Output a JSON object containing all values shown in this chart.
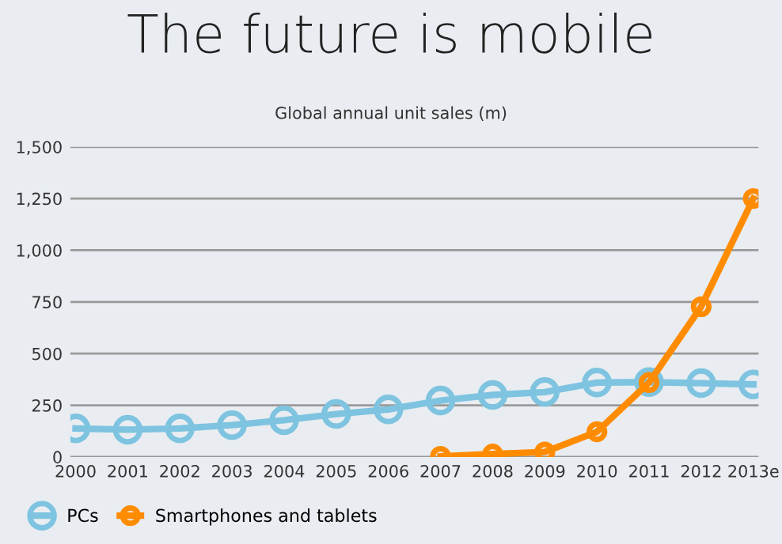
{
  "chart_data": {
    "type": "line",
    "title": "The future is mobile",
    "subtitle": "Global annual unit sales (m)",
    "categories": [
      "2000",
      "2001",
      "2002",
      "2003",
      "2004",
      "2005",
      "2006",
      "2007",
      "2008",
      "2009",
      "2010",
      "2011",
      "2012",
      "2013e"
    ],
    "series": [
      {
        "name": "PCs",
        "color": "#7ec4e0",
        "values": [
          138,
          132,
          138,
          154,
          178,
          208,
          230,
          273,
          300,
          314,
          360,
          362,
          357,
          351
        ]
      },
      {
        "name": "Smartphones and tablets",
        "color": "#ff8c00",
        "values": [
          null,
          null,
          null,
          null,
          null,
          null,
          null,
          3,
          14,
          24,
          122,
          360,
          727,
          1250
        ]
      }
    ],
    "ylim": [
      0,
      1500
    ],
    "yticks": [
      0,
      250,
      500,
      750,
      {
        "value": 1000,
        "label": "1,000"
      },
      {
        "value": 1250,
        "label": "1,250"
      },
      {
        "value": 1500,
        "label": "1,500"
      }
    ],
    "grid": "y",
    "legend": "bottom left",
    "marker": "circle",
    "line_style": "solid"
  }
}
